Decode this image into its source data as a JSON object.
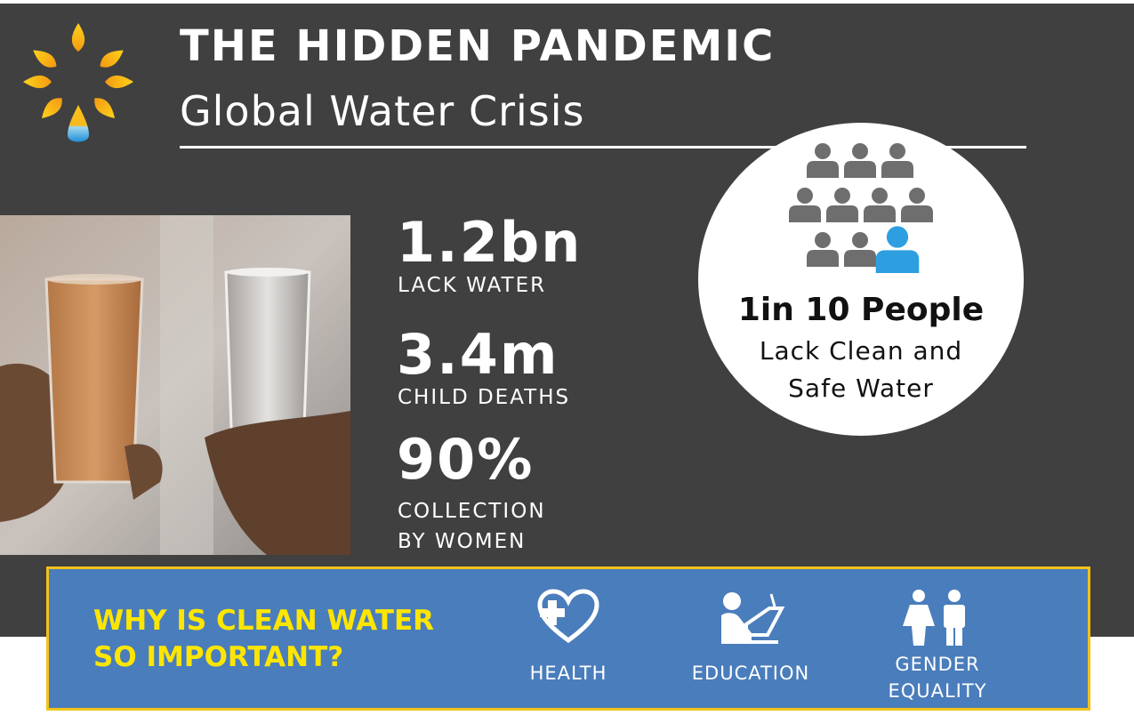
{
  "header": {
    "title": "THE HIDDEN PANDEMIC",
    "subtitle": "Global Water Crisis",
    "logo_icon": "sun-water-drop-icon"
  },
  "stats": [
    {
      "value": "1.2bn",
      "label": "LACK WATER"
    },
    {
      "value": "3.4m",
      "label": "CHILD DEATHS"
    },
    {
      "value": "90%",
      "label_line1": "COLLECTION",
      "label_line2": "BY WOMEN"
    }
  ],
  "circle": {
    "headline": "1in 10 People",
    "line1": "Lack Clean and",
    "line2": "Safe Water",
    "people_total": 10,
    "people_highlighted": 1
  },
  "banner": {
    "question_line1": "WHY IS CLEAN WATER",
    "question_line2": "SO IMPORTANT?",
    "items": [
      {
        "icon": "health-heart-icon",
        "label": "HEALTH"
      },
      {
        "icon": "education-icon",
        "label": "EDUCATION"
      },
      {
        "icon": "gender-equality-icon",
        "label_line1": "GENDER",
        "label_line2": "EQUALITY"
      }
    ]
  },
  "colors": {
    "background": "#404040",
    "banner": "#4a7dbb",
    "banner_border": "#f2c21a",
    "question_text": "#ffe600",
    "person_icon": "#6e6e6e",
    "person_highlight": "#2d9fe0"
  }
}
